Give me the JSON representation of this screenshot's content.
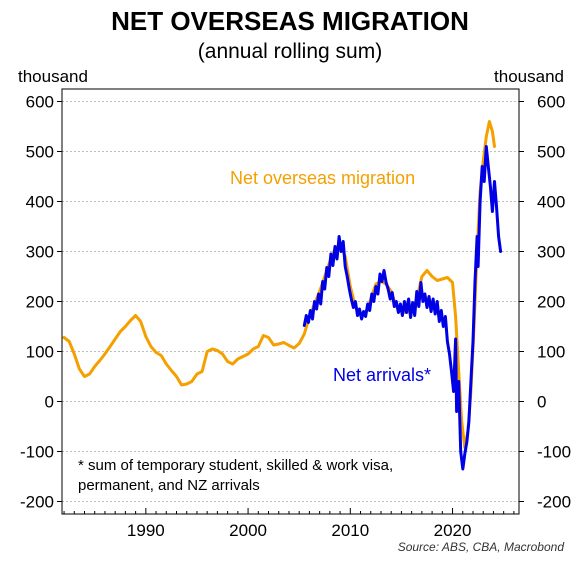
{
  "chart_data": {
    "type": "line",
    "title": "NET OVERSEAS MIGRATION",
    "subtitle": "(annual rolling sum)",
    "ylabel_left": "thousand",
    "ylabel_right": "thousand",
    "xlim": [
      1981.8,
      2026.5
    ],
    "ylim": [
      -225,
      625
    ],
    "y_ticks": [
      -200,
      -100,
      0,
      100,
      200,
      300,
      400,
      500,
      600
    ],
    "x_ticks": [
      1990,
      2000,
      2010,
      2020
    ],
    "grid": "horizontal dotted",
    "series": [
      {
        "name": "Net overseas migration",
        "color": "#F5A000",
        "points": [
          [
            1982.0,
            128
          ],
          [
            1982.5,
            120
          ],
          [
            1983.0,
            95
          ],
          [
            1983.5,
            65
          ],
          [
            1984.0,
            50
          ],
          [
            1984.5,
            55
          ],
          [
            1985.0,
            70
          ],
          [
            1985.5,
            82
          ],
          [
            1986.0,
            95
          ],
          [
            1986.5,
            110
          ],
          [
            1987.0,
            125
          ],
          [
            1987.5,
            140
          ],
          [
            1988.0,
            150
          ],
          [
            1988.5,
            162
          ],
          [
            1989.0,
            172
          ],
          [
            1989.5,
            160
          ],
          [
            1990.0,
            130
          ],
          [
            1990.5,
            110
          ],
          [
            1991.0,
            98
          ],
          [
            1991.5,
            92
          ],
          [
            1992.0,
            75
          ],
          [
            1992.5,
            62
          ],
          [
            1993.0,
            50
          ],
          [
            1993.5,
            33
          ],
          [
            1994.0,
            35
          ],
          [
            1994.5,
            40
          ],
          [
            1995.0,
            55
          ],
          [
            1995.5,
            60
          ],
          [
            1996.0,
            100
          ],
          [
            1996.5,
            105
          ],
          [
            1997.0,
            102
          ],
          [
            1997.5,
            95
          ],
          [
            1998.0,
            80
          ],
          [
            1998.5,
            75
          ],
          [
            1999.0,
            85
          ],
          [
            1999.5,
            90
          ],
          [
            2000.0,
            95
          ],
          [
            2000.5,
            105
          ],
          [
            2001.0,
            110
          ],
          [
            2001.5,
            132
          ],
          [
            2002.0,
            128
          ],
          [
            2002.5,
            113
          ],
          [
            2003.0,
            115
          ],
          [
            2003.5,
            118
          ],
          [
            2004.0,
            112
          ],
          [
            2004.5,
            107
          ],
          [
            2005.0,
            116
          ],
          [
            2005.5,
            135
          ],
          [
            2006.0,
            170
          ],
          [
            2006.5,
            195
          ],
          [
            2007.0,
            220
          ],
          [
            2007.5,
            250
          ],
          [
            2008.0,
            280
          ],
          [
            2008.5,
            305
          ],
          [
            2009.0,
            315
          ],
          [
            2009.5,
            290
          ],
          [
            2010.0,
            230
          ],
          [
            2010.5,
            190
          ],
          [
            2011.0,
            172
          ],
          [
            2011.5,
            175
          ],
          [
            2012.0,
            205
          ],
          [
            2012.5,
            235
          ],
          [
            2013.0,
            240
          ],
          [
            2013.5,
            235
          ],
          [
            2014.0,
            220
          ],
          [
            2014.5,
            190
          ],
          [
            2015.0,
            180
          ],
          [
            2015.5,
            178
          ],
          [
            2016.0,
            180
          ],
          [
            2016.5,
            205
          ],
          [
            2017.0,
            250
          ],
          [
            2017.5,
            262
          ],
          [
            2018.0,
            250
          ],
          [
            2018.5,
            242
          ],
          [
            2019.0,
            245
          ],
          [
            2019.5,
            248
          ],
          [
            2020.0,
            238
          ],
          [
            2020.3,
            170
          ],
          [
            2020.6,
            60
          ],
          [
            2020.9,
            -40
          ],
          [
            2021.2,
            -92
          ],
          [
            2021.5,
            -60
          ],
          [
            2021.8,
            20
          ],
          [
            2022.1,
            150
          ],
          [
            2022.4,
            300
          ],
          [
            2022.7,
            420
          ],
          [
            2023.0,
            480
          ],
          [
            2023.3,
            530
          ],
          [
            2023.6,
            560
          ],
          [
            2023.9,
            540
          ],
          [
            2024.1,
            510
          ]
        ]
      },
      {
        "name": "Net arrivals*",
        "color": "#0000E6",
        "points": [
          [
            2005.5,
            152
          ],
          [
            2005.7,
            172
          ],
          [
            2005.9,
            158
          ],
          [
            2006.1,
            182
          ],
          [
            2006.3,
            165
          ],
          [
            2006.5,
            200
          ],
          [
            2006.7,
            185
          ],
          [
            2006.9,
            215
          ],
          [
            2007.1,
            195
          ],
          [
            2007.3,
            240
          ],
          [
            2007.5,
            225
          ],
          [
            2007.7,
            268
          ],
          [
            2007.9,
            250
          ],
          [
            2008.1,
            295
          ],
          [
            2008.3,
            272
          ],
          [
            2008.5,
            310
          ],
          [
            2008.7,
            285
          ],
          [
            2008.9,
            330
          ],
          [
            2009.1,
            300
          ],
          [
            2009.3,
            320
          ],
          [
            2009.5,
            270
          ],
          [
            2009.7,
            250
          ],
          [
            2009.9,
            225
          ],
          [
            2010.1,
            205
          ],
          [
            2010.3,
            188
          ],
          [
            2010.5,
            200
          ],
          [
            2010.7,
            172
          ],
          [
            2010.9,
            185
          ],
          [
            2011.1,
            165
          ],
          [
            2011.3,
            180
          ],
          [
            2011.5,
            170
          ],
          [
            2011.7,
            195
          ],
          [
            2011.9,
            182
          ],
          [
            2012.1,
            215
          ],
          [
            2012.3,
            200
          ],
          [
            2012.5,
            230
          ],
          [
            2012.7,
            215
          ],
          [
            2012.9,
            255
          ],
          [
            2013.1,
            240
          ],
          [
            2013.3,
            262
          ],
          [
            2013.5,
            238
          ],
          [
            2013.7,
            225
          ],
          [
            2013.9,
            205
          ],
          [
            2014.1,
            218
          ],
          [
            2014.3,
            190
          ],
          [
            2014.5,
            200
          ],
          [
            2014.7,
            178
          ],
          [
            2014.9,
            195
          ],
          [
            2015.1,
            172
          ],
          [
            2015.3,
            200
          ],
          [
            2015.5,
            178
          ],
          [
            2015.7,
            205
          ],
          [
            2015.9,
            168
          ],
          [
            2016.1,
            198
          ],
          [
            2016.3,
            172
          ],
          [
            2016.5,
            220
          ],
          [
            2016.7,
            190
          ],
          [
            2016.9,
            238
          ],
          [
            2017.1,
            200
          ],
          [
            2017.3,
            215
          ],
          [
            2017.5,
            188
          ],
          [
            2017.7,
            210
          ],
          [
            2017.9,
            180
          ],
          [
            2018.1,
            205
          ],
          [
            2018.3,
            175
          ],
          [
            2018.5,
            200
          ],
          [
            2018.7,
            160
          ],
          [
            2018.9,
            182
          ],
          [
            2019.1,
            150
          ],
          [
            2019.3,
            170
          ],
          [
            2019.5,
            120
          ],
          [
            2019.7,
            95
          ],
          [
            2019.9,
            60
          ],
          [
            2020.1,
            20
          ],
          [
            2020.3,
            125
          ],
          [
            2020.4,
            -20
          ],
          [
            2020.6,
            40
          ],
          [
            2020.8,
            -100
          ],
          [
            2021.0,
            -135
          ],
          [
            2021.2,
            -105
          ],
          [
            2021.4,
            -80
          ],
          [
            2021.6,
            -40
          ],
          [
            2021.8,
            40
          ],
          [
            2022.0,
            120
          ],
          [
            2022.2,
            240
          ],
          [
            2022.4,
            330
          ],
          [
            2022.5,
            270
          ],
          [
            2022.7,
            400
          ],
          [
            2022.9,
            470
          ],
          [
            2023.1,
            440
          ],
          [
            2023.3,
            510
          ],
          [
            2023.5,
            470
          ],
          [
            2023.7,
            430
          ],
          [
            2023.9,
            380
          ],
          [
            2024.1,
            440
          ],
          [
            2024.3,
            390
          ],
          [
            2024.5,
            330
          ],
          [
            2024.7,
            300
          ]
        ]
      }
    ],
    "annotations": {
      "net_overseas_migration": "Net overseas migration",
      "net_arrivals": "Net arrivals*",
      "footnote_line1": "* sum of temporary student, skilled & work visa,",
      "footnote_line2": "permanent, and NZ arrivals"
    },
    "source": "Source: ABS, CBA, Macrobond"
  }
}
